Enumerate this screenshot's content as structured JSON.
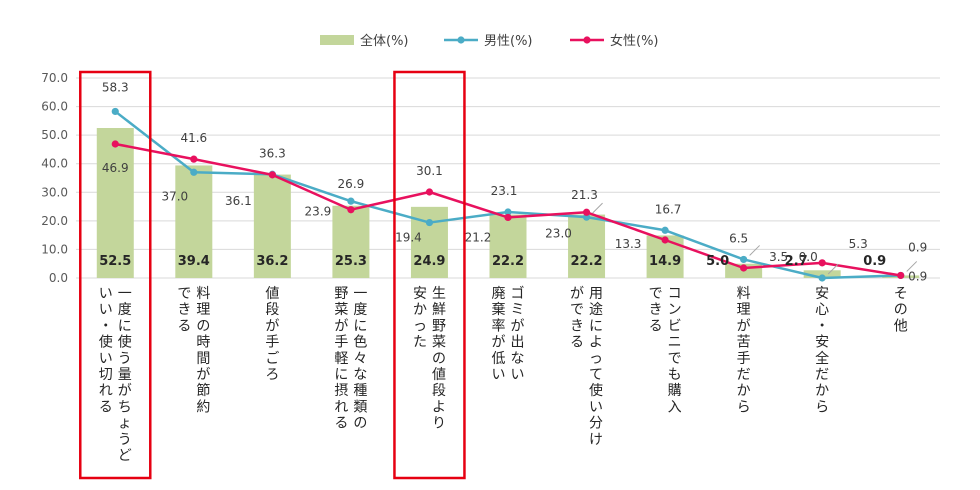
{
  "chart_data": {
    "type": "bar",
    "categories": [
      [
        "一度に使う量がちょうど",
        "いい・使い切れる"
      ],
      [
        "料理の時間が節約",
        "できる"
      ],
      [
        "値段が手ごろ"
      ],
      [
        "一度に色々な種類の",
        "野菜が手軽に摂れる"
      ],
      [
        "生鮮野菜の値段より",
        "安かった"
      ],
      [
        "ゴミが出ない",
        "廃棄率が低い"
      ],
      [
        "用途によって使い分け",
        "ができる"
      ],
      [
        "コンビニでも購入",
        "できる"
      ],
      [
        "料理が苦手だから"
      ],
      [
        "安心・安全だから"
      ],
      [
        "その他"
      ]
    ],
    "series": [
      {
        "name": "全体(%)",
        "kind": "bar",
        "color": "#c3d69b",
        "values": [
          52.5,
          39.4,
          36.2,
          25.3,
          24.9,
          22.2,
          22.2,
          14.9,
          5.0,
          2.7,
          0.9
        ],
        "labels": [
          "52.5",
          "39.4",
          "36.2",
          "25.3",
          "24.9",
          "22.2",
          "22.2",
          "14.9",
          "5.0",
          "2.7",
          "0.9"
        ]
      },
      {
        "name": "男性(%)",
        "kind": "line",
        "color": "#4bacc6",
        "values": [
          58.3,
          37.0,
          36.3,
          26.9,
          19.4,
          23.1,
          21.3,
          16.7,
          6.5,
          0.0,
          0.9
        ],
        "labels": [
          "58.3",
          "37.0",
          "36.3",
          "26.9",
          "19.4",
          "23.1",
          "21.3",
          "16.7",
          "6.5",
          "0.0",
          "0.9"
        ]
      },
      {
        "name": "女性(%)",
        "kind": "line",
        "color": "#e8115e",
        "values": [
          46.9,
          41.6,
          36.1,
          23.9,
          30.1,
          21.2,
          23.0,
          13.3,
          3.5,
          5.3,
          0.9
        ],
        "labels": [
          "46.9",
          "41.6",
          "36.1",
          "23.9",
          "30.1",
          "21.2",
          "23.0",
          "13.3",
          "3.5",
          "5.3",
          "0.9"
        ]
      }
    ],
    "yticks": [
      "0.0",
      "10.0",
      "20.0",
      "30.0",
      "40.0",
      "50.0",
      "60.0",
      "70.0"
    ],
    "ylim": [
      0,
      70
    ],
    "grid": true,
    "legend": "top-center",
    "highlighted_categories": [
      0,
      4
    ],
    "highlight_color": "#e60012"
  }
}
